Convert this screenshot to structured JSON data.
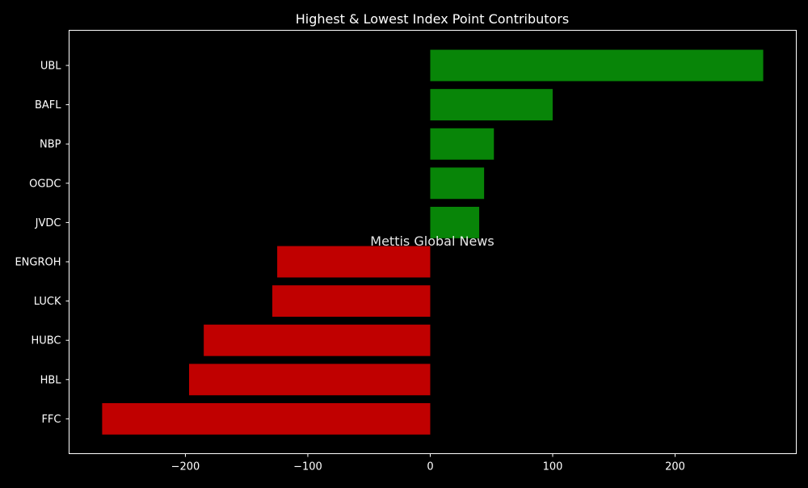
{
  "chart_data": {
    "type": "bar",
    "orientation": "horizontal",
    "title": "Highest & Lowest Index Point Contributors",
    "watermark": "Mettis Global News",
    "categories": [
      "UBL",
      "BAFL",
      "NBP",
      "OGDC",
      "JVDC",
      "ENGROH",
      "LUCK",
      "HUBC",
      "HBL",
      "FFC"
    ],
    "values": [
      272,
      100,
      52,
      44,
      40,
      -125,
      -129,
      -185,
      -197,
      -268
    ],
    "xlim": [
      -295,
      299
    ],
    "xticks": [
      -200,
      -100,
      0,
      100,
      200
    ],
    "xtick_labels": [
      "−200",
      "−100",
      "0",
      "100",
      "200"
    ],
    "xlabel": "",
    "ylabel": "",
    "grid": false,
    "colors": {
      "positive": "#088508",
      "negative": "#c00000",
      "background": "#000000",
      "text": "#ffffff",
      "watermark": "#c8741c"
    }
  }
}
